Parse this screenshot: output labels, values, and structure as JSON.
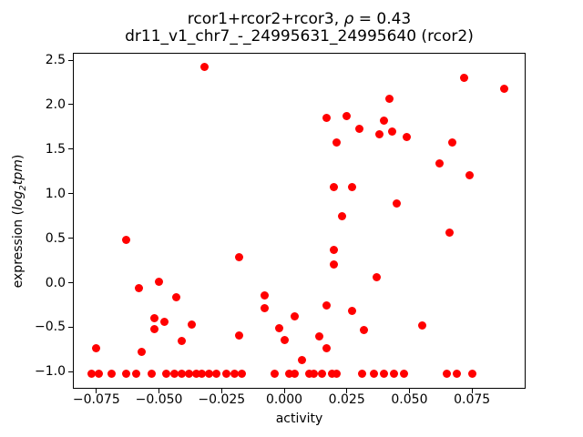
{
  "title_parts": {
    "pre": "rcor1+rcor2+rcor3, ",
    "rho": "ρ",
    "post": " = 0.43"
  },
  "subtitle": "dr11_v1_chr7_-_24995631_24995640 (rcor2)",
  "ylabel_parts": {
    "prefix": "expression (",
    "log": "log",
    "sub": "2",
    "tpm": "tpm",
    "suffix": ")"
  },
  "chart_data": {
    "type": "scatter",
    "title": "rcor1+rcor2+rcor3, ρ = 0.43",
    "subtitle": "dr11_v1_chr7_-_24995631_24995640 (rcor2)",
    "correlation_rho": 0.43,
    "xlabel": "activity",
    "ylabel": "expression (log2 tpm)",
    "marker_color": "#ff0000",
    "grid": false,
    "legend": "none",
    "xlim": [
      -0.0844,
      0.0964
    ],
    "ylim": [
      -1.191,
      2.582
    ],
    "xticks": {
      "values": [
        -0.075,
        -0.05,
        -0.025,
        0.0,
        0.025,
        0.05,
        0.075
      ],
      "labels": [
        "−0.075",
        "−0.050",
        "−0.025",
        "0.000",
        "0.025",
        "0.050",
        "0.075"
      ]
    },
    "yticks": {
      "values": [
        2.5,
        2.0,
        1.5,
        1.0,
        0.5,
        0.0,
        -0.5,
        -1.0
      ],
      "labels": [
        "2.5",
        "2.0",
        "1.5",
        "1.0",
        "0.5",
        "0.0",
        "−0.5",
        "−1.0"
      ]
    },
    "points": [
      [
        -0.032,
        2.42
      ],
      [
        0.072,
        2.3
      ],
      [
        0.088,
        2.18
      ],
      [
        0.042,
        2.07
      ],
      [
        0.025,
        1.87
      ],
      [
        0.017,
        1.85
      ],
      [
        0.04,
        1.82
      ],
      [
        0.03,
        1.73
      ],
      [
        0.043,
        1.7
      ],
      [
        0.038,
        1.67
      ],
      [
        0.049,
        1.64
      ],
      [
        0.021,
        1.57
      ],
      [
        0.067,
        1.57
      ],
      [
        0.062,
        1.34
      ],
      [
        0.074,
        1.21
      ],
      [
        0.02,
        1.07
      ],
      [
        0.027,
        1.07
      ],
      [
        0.045,
        0.89
      ],
      [
        0.023,
        0.75
      ],
      [
        0.066,
        0.56
      ],
      [
        -0.063,
        0.48
      ],
      [
        0.02,
        0.37
      ],
      [
        -0.018,
        0.29
      ],
      [
        0.02,
        0.2
      ],
      [
        0.037,
        0.06
      ],
      [
        -0.05,
        0.01
      ],
      [
        -0.058,
        -0.06
      ],
      [
        -0.008,
        -0.14
      ],
      [
        -0.043,
        -0.16
      ],
      [
        0.017,
        -0.26
      ],
      [
        -0.008,
        -0.29
      ],
      [
        0.027,
        -0.32
      ],
      [
        0.004,
        -0.38
      ],
      [
        -0.052,
        -0.4
      ],
      [
        -0.048,
        -0.44
      ],
      [
        -0.037,
        -0.47
      ],
      [
        0.055,
        -0.48
      ],
      [
        -0.002,
        -0.51
      ],
      [
        -0.052,
        -0.52
      ],
      [
        0.032,
        -0.53
      ],
      [
        -0.018,
        -0.59
      ],
      [
        0.014,
        -0.6
      ],
      [
        0.0,
        -0.64
      ],
      [
        -0.041,
        -0.65
      ],
      [
        -0.075,
        -0.74
      ],
      [
        0.017,
        -0.74
      ],
      [
        -0.057,
        -0.78
      ],
      [
        0.007,
        -0.87
      ],
      [
        -0.077,
        -1.02
      ],
      [
        -0.074,
        -1.02
      ],
      [
        -0.069,
        -1.02
      ],
      [
        -0.063,
        -1.02
      ],
      [
        -0.059,
        -1.02
      ],
      [
        -0.053,
        -1.02
      ],
      [
        -0.047,
        -1.02
      ],
      [
        -0.044,
        -1.02
      ],
      [
        -0.041,
        -1.02
      ],
      [
        -0.038,
        -1.02
      ],
      [
        -0.035,
        -1.02
      ],
      [
        -0.033,
        -1.02
      ],
      [
        -0.03,
        -1.02
      ],
      [
        -0.027,
        -1.02
      ],
      [
        -0.023,
        -1.02
      ],
      [
        -0.02,
        -1.02
      ],
      [
        -0.017,
        -1.02
      ],
      [
        -0.004,
        -1.02
      ],
      [
        0.002,
        -1.02
      ],
      [
        0.004,
        -1.02
      ],
      [
        0.01,
        -1.02
      ],
      [
        0.012,
        -1.02
      ],
      [
        0.015,
        -1.02
      ],
      [
        0.019,
        -1.02
      ],
      [
        0.021,
        -1.02
      ],
      [
        0.031,
        -1.02
      ],
      [
        0.036,
        -1.02
      ],
      [
        0.04,
        -1.02
      ],
      [
        0.044,
        -1.02
      ],
      [
        0.048,
        -1.02
      ],
      [
        0.065,
        -1.02
      ],
      [
        0.069,
        -1.02
      ],
      [
        0.075,
        -1.02
      ]
    ]
  }
}
